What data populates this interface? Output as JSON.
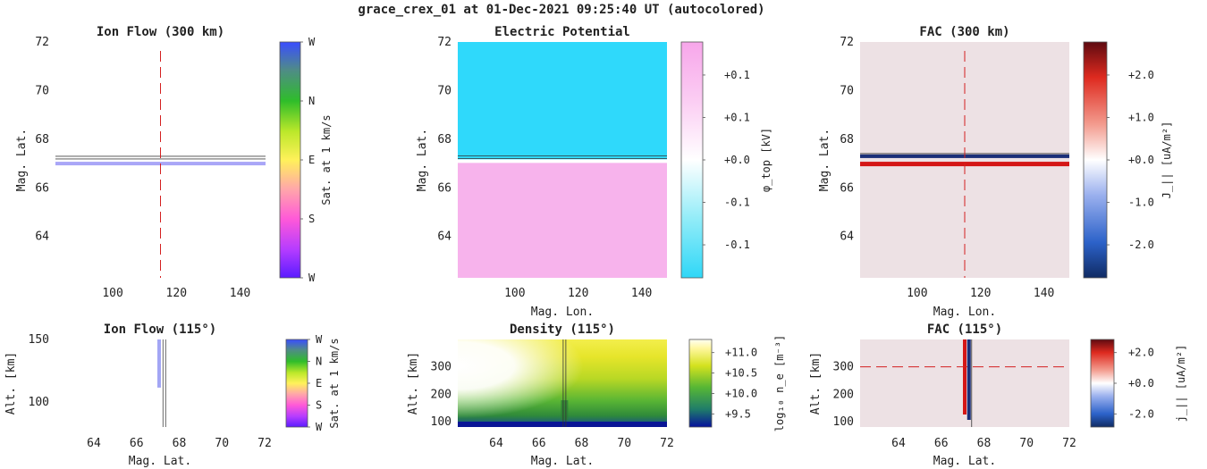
{
  "suptitle": "grace_crex_01 at 01-Dec-2021 09:25:40 UT (autocolored)",
  "chart_data": [
    {
      "id": "ionflow_top",
      "type": "heatmap",
      "title": "Ion Flow (300 km)",
      "xlabel": "",
      "ylabel": "Mag. Lat.",
      "xlim": [
        82,
        148
      ],
      "ylim": [
        62.3,
        72
      ],
      "xticks": [
        "100",
        "120",
        "140"
      ],
      "yticks": [
        "64",
        "66",
        "68",
        "70",
        "72"
      ],
      "colorbar": {
        "label": "Sat. at 1 km/s",
        "ticks": [
          "W",
          "S",
          "E",
          "N",
          "W"
        ]
      },
      "features": {
        "arc_lat": [
          67.0,
          67.3
        ],
        "cut_lon": 115
      }
    },
    {
      "id": "potential_top",
      "type": "heatmap",
      "title": "Electric Potential",
      "xlabel": "Mag. Lon.",
      "ylabel": "Mag. Lat.",
      "xlim": [
        82,
        148
      ],
      "ylim": [
        62.3,
        72
      ],
      "xticks": [
        "100",
        "120",
        "140"
      ],
      "yticks": [
        "64",
        "66",
        "68",
        "70",
        "72"
      ],
      "colorbar": {
        "label": "φ_top [kV]",
        "ticks": [
          "-0.1",
          "-0.1",
          "+0.0",
          "+0.1",
          "+0.1"
        ]
      },
      "features": {
        "boundary_lat": 67.1,
        "value_north_kv": -0.15,
        "value_south_kv": 0.15
      }
    },
    {
      "id": "fac_top",
      "type": "heatmap",
      "title": "FAC (300 km)",
      "xlabel": "Mag. Lon.",
      "ylabel": "Mag. Lat.",
      "xlim": [
        82,
        148
      ],
      "ylim": [
        62.3,
        72
      ],
      "xticks": [
        "100",
        "120",
        "140"
      ],
      "yticks": [
        "64",
        "66",
        "68",
        "70",
        "72"
      ],
      "colorbar": {
        "label": "J_|| [uA/m²]",
        "ticks": [
          "-2.0",
          "-1.0",
          "+0.0",
          "+1.0",
          "+2.0"
        ]
      },
      "features": {
        "arc_lat": [
          67.0,
          67.3
        ],
        "cut_lon": 115
      }
    },
    {
      "id": "ionflow_bottom",
      "type": "heatmap",
      "title": "Ion Flow (115°)",
      "xlabel": "Mag. Lat.",
      "ylabel": "Alt. [km]",
      "xlim": [
        62.2,
        72
      ],
      "ylim": [
        80,
        150
      ],
      "xticks": [
        "64",
        "66",
        "68",
        "70",
        "72"
      ],
      "yticks": [
        "100",
        "150"
      ],
      "colorbar": {
        "label": "Sat. at 1 km/s",
        "ticks": [
          "W",
          "S",
          "E",
          "N",
          "W"
        ]
      },
      "features": {
        "arc_lat": [
          67.1,
          67.3
        ]
      }
    },
    {
      "id": "density_bottom",
      "type": "heatmap",
      "title": "Density (115°)",
      "xlabel": "Mag. Lat.",
      "ylabel": "Alt. [km]",
      "xlim": [
        62.2,
        72
      ],
      "ylim": [
        80,
        400
      ],
      "xticks": [
        "64",
        "66",
        "68",
        "70",
        "72"
      ],
      "yticks": [
        "100",
        "200",
        "300"
      ],
      "colorbar": {
        "label": "log₁₀ n_e [m⁻³]",
        "ticks": [
          "+9.5",
          "+10.0",
          "+10.5",
          "+11.0"
        ]
      },
      "features": {
        "arc_lat": 67.2
      }
    },
    {
      "id": "fac_bottom",
      "type": "heatmap",
      "title": "FAC (115°)",
      "xlabel": "Mag. Lat.",
      "ylabel": "Alt. [km]",
      "xlim": [
        62.2,
        72
      ],
      "ylim": [
        80,
        400
      ],
      "xticks": [
        "64",
        "66",
        "68",
        "70",
        "72"
      ],
      "yticks": [
        "100",
        "200",
        "300"
      ],
      "colorbar": {
        "label": "j_|| [uA/m²]",
        "ticks": [
          "-2.0",
          "+0.0",
          "+2.0"
        ]
      },
      "features": {
        "arc_lat": [
          67.1,
          67.3
        ],
        "cut_alt_km": 300
      }
    }
  ]
}
